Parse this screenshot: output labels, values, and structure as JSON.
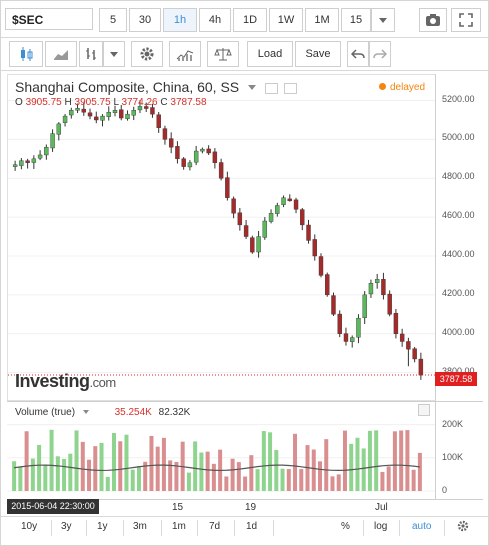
{
  "toolbar": {
    "symbol": "$SEC",
    "timeframes": [
      "5",
      "30",
      "1h",
      "4h",
      "1D",
      "1W",
      "1M",
      "15"
    ],
    "active_timeframe": "1h",
    "load_label": "Load",
    "save_label": "Save"
  },
  "chart": {
    "title": "Shanghai Composite, China, 60, SS",
    "ohlc": {
      "o_label": "O",
      "o": "3905.75",
      "h_label": "H",
      "h": "3905.75",
      "l_label": "L",
      "l": "3774.26",
      "c_label": "C",
      "c": "3787.58"
    },
    "delayed_label": "delayed",
    "last_price": "3787.58",
    "logo_text": "Investing",
    "logo_suffix": ".com"
  },
  "volume": {
    "label": "Volume (true)",
    "value1": "35.254K",
    "value2": "82.32K",
    "axis_labels": [
      "200K",
      "100K",
      "0"
    ]
  },
  "crosshair_date": "2015-06-04 22:30:00",
  "x_labels": [
    "15",
    "19",
    "Jul"
  ],
  "ranges": [
    "10y",
    "3y",
    "1y",
    "3m",
    "1m",
    "7d",
    "1d"
  ],
  "options": {
    "percent": "%",
    "log": "log",
    "auto": "auto"
  },
  "colors": {
    "up": "#5cb85c",
    "down": "#a52a2a",
    "vol_up": "#8ed38e",
    "vol_down": "#d98f8f",
    "accent": "#3d8ed4",
    "last_price": "#e02020"
  },
  "chart_data": {
    "type": "candlestick",
    "y_axis_labels": [
      "5200.00",
      "5000.00",
      "4800.00",
      "4600.00",
      "4400.00",
      "4200.00",
      "4000.00",
      "3800.00"
    ],
    "ylim": [
      3700,
      5280
    ],
    "x_labels": [
      "15",
      "19",
      "Jul"
    ],
    "last_price": 3787.58,
    "close_path": [
      4870,
      4890,
      4880,
      4900,
      4920,
      4960,
      5030,
      5080,
      5120,
      5150,
      5160,
      5140,
      5120,
      5100,
      5120,
      5140,
      5150,
      5110,
      5130,
      5150,
      5170,
      5160,
      5130,
      5060,
      5000,
      4960,
      4900,
      4860,
      4880,
      4940,
      4950,
      4930,
      4880,
      4800,
      4700,
      4620,
      4560,
      4500,
      4420,
      4500,
      4580,
      4620,
      4660,
      4700,
      4690,
      4640,
      4560,
      4480,
      4400,
      4300,
      4200,
      4100,
      4000,
      3960,
      3980,
      4080,
      4200,
      4260,
      4280,
      4200,
      4100,
      4000,
      3960,
      3920,
      3870,
      3787
    ],
    "volume_ylim": [
      0,
      250000
    ]
  }
}
